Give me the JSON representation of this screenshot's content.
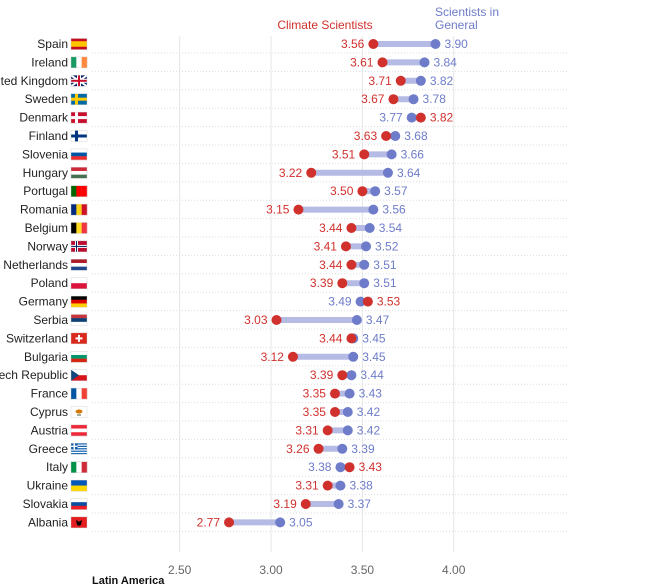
{
  "chart_data": {
    "type": "dumbbell",
    "series": [
      {
        "name": "Climate Scientists",
        "color": "#d0312d"
      },
      {
        "name": "Scientists in General",
        "color": "#6e7cc9"
      }
    ],
    "categories": [
      "Spain",
      "Ireland",
      "United Kingdom",
      "Sweden",
      "Denmark",
      "Finland",
      "Slovenia",
      "Hungary",
      "Portugal",
      "Romania",
      "Belgium",
      "Norway",
      "Netherlands",
      "Poland",
      "Germany",
      "Serbia",
      "Switzerland",
      "Bulgaria",
      "Czech Republic",
      "France",
      "Cyprus",
      "Austria",
      "Greece",
      "Italy",
      "Ukraine",
      "Slovakia",
      "Albania"
    ],
    "climate_scientists": [
      3.56,
      3.61,
      3.71,
      3.67,
      3.82,
      3.63,
      3.51,
      3.22,
      3.5,
      3.15,
      3.44,
      3.41,
      3.44,
      3.39,
      3.53,
      3.03,
      3.44,
      3.12,
      3.39,
      3.35,
      3.35,
      3.31,
      3.26,
      3.43,
      3.31,
      3.19,
      2.77
    ],
    "scientists_in_general": [
      3.9,
      3.84,
      3.82,
      3.78,
      3.77,
      3.68,
      3.66,
      3.64,
      3.57,
      3.56,
      3.54,
      3.52,
      3.51,
      3.51,
      3.49,
      3.47,
      3.45,
      3.45,
      3.44,
      3.43,
      3.42,
      3.42,
      3.39,
      3.38,
      3.38,
      3.37,
      3.05
    ],
    "climate_labels": [
      "3.56",
      "3.61",
      "3.71",
      "3.67",
      "3.82",
      "3.63",
      "3.51",
      "3.22",
      "3.50",
      "3.15",
      "3.44",
      "3.41",
      "3.44",
      "3.39",
      "3.53",
      "3.03",
      "3.44",
      "3.12",
      "3.39",
      "3.35",
      "3.35",
      "3.31",
      "3.26",
      "3.43",
      "3.31",
      "3.19",
      "2.77"
    ],
    "general_labels": [
      "3.90",
      "3.84",
      "3.82",
      "3.78",
      "3.77",
      "3.68",
      "3.66",
      "3.64",
      "3.57",
      "3.56",
      "3.54",
      "3.52",
      "3.51",
      "3.51",
      "3.49",
      "3.47",
      "3.45",
      "3.45",
      "3.44",
      "3.43",
      "3.42",
      "3.42",
      "3.39",
      "3.38",
      "3.38",
      "3.37",
      "3.05"
    ],
    "x_ticks": [
      2.5,
      3.0,
      3.5,
      4.0
    ],
    "x_tick_labels": [
      "2.50",
      "3.00",
      "3.50",
      "4.00"
    ],
    "xlim": [
      2.02,
      4.62
    ],
    "grid": true
  },
  "legend": {
    "climate_label": "Climate Scientists",
    "general_label_line1": "Scientists in",
    "general_label_line2": "General"
  },
  "section_label": "Latin America"
}
